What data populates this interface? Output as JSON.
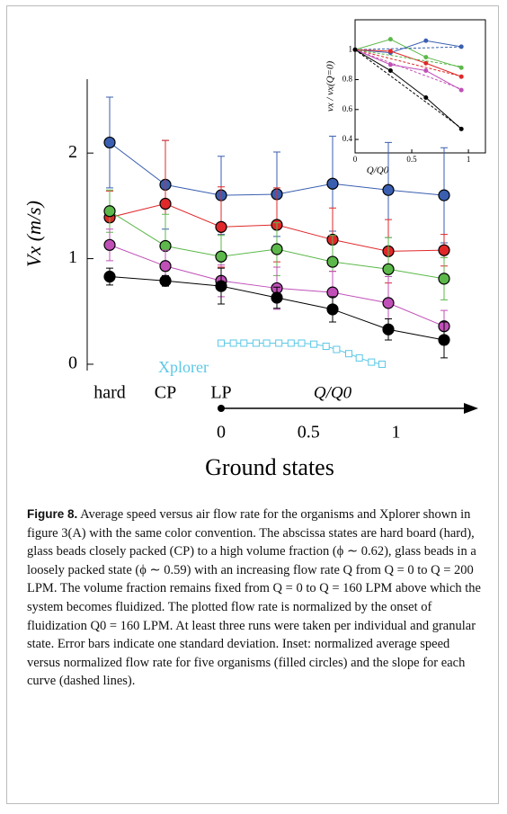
{
  "chart_data": [
    {
      "type": "line",
      "ylabel": "Vx (m/s)",
      "xlabel": "Ground states",
      "q_axis_label": "Q/Q0",
      "categories": [
        "hard",
        "CP",
        "LP",
        null,
        null,
        null,
        null
      ],
      "ylim": [
        -0.06,
        2.7
      ],
      "yticks": [
        0,
        1,
        2
      ],
      "qlim": [
        0,
        1.46
      ],
      "qticks": [
        0,
        0.5,
        1
      ],
      "annotation": "Xplorer",
      "series": [
        {
          "color": "#3a5fb0",
          "values": [
            2.1,
            1.7,
            1.6,
            1.61,
            1.71,
            1.65,
            1.6
          ],
          "errors": [
            0.43,
            0.42,
            0.37,
            0.4,
            0.45,
            0.45,
            0.45
          ]
        },
        {
          "color": "#e0282a",
          "values": [
            1.39,
            1.52,
            1.3,
            1.32,
            1.18,
            1.07,
            1.08
          ],
          "errors": [
            0.25,
            0.6,
            0.38,
            0.35,
            0.3,
            0.3,
            0.15
          ]
        },
        {
          "color": "#5cb84a",
          "values": [
            1.45,
            1.12,
            1.02,
            1.09,
            0.97,
            0.9,
            0.81
          ],
          "errors": [
            0.2,
            0.3,
            0.2,
            0.25,
            0.25,
            0.3,
            0.2
          ]
        },
        {
          "color": "#c050b8",
          "values": [
            1.13,
            0.93,
            0.79,
            0.72,
            0.68,
            0.58,
            0.36
          ],
          "errors": [
            0.15,
            0.15,
            0.15,
            0.2,
            0.2,
            0.25,
            0.15
          ]
        },
        {
          "color": "#000000",
          "values": [
            0.83,
            0.79,
            0.74,
            0.63,
            0.52,
            0.33,
            0.23
          ],
          "errors": [
            0.08,
            0.05,
            0.17,
            0.1,
            0.12,
            0.1,
            0.17
          ]
        }
      ],
      "xplorer": {
        "color": "#5bc8e6",
        "x": [
          0,
          0.07,
          0.13,
          0.2,
          0.26,
          0.33,
          0.4,
          0.46,
          0.53,
          0.6,
          0.66,
          0.73,
          0.79,
          0.86,
          0.92
        ],
        "values": [
          0.2,
          0.2,
          0.2,
          0.2,
          0.2,
          0.2,
          0.2,
          0.2,
          0.19,
          0.17,
          0.14,
          0.1,
          0.06,
          0.02,
          0.0
        ]
      }
    },
    {
      "type": "line",
      "ylabel": "vx / vx(Q=0)",
      "xlabel": "Q/Q0",
      "x": [
        0,
        0.3125,
        0.625,
        0.9375
      ],
      "xlim": [
        0,
        1.15
      ],
      "xticks": [
        0,
        0.5,
        1
      ],
      "ylim": [
        0.31,
        1.2
      ],
      "yticks": [
        0.4,
        0.6,
        0.8,
        1
      ],
      "series": [
        {
          "color": "#3a5fb0",
          "values": [
            1,
            0.98,
            1.06,
            1.02
          ],
          "slope": 0.02
        },
        {
          "color": "#e0282a",
          "values": [
            1,
            0.99,
            0.91,
            0.82
          ],
          "slope": -0.19
        },
        {
          "color": "#5cb84a",
          "values": [
            1,
            1.07,
            0.95,
            0.88
          ],
          "slope": -0.12
        },
        {
          "color": "#c050b8",
          "values": [
            1,
            0.9,
            0.86,
            0.73
          ],
          "slope": -0.28
        },
        {
          "color": "#000000",
          "values": [
            1,
            0.86,
            0.68,
            0.47
          ],
          "slope": -0.56
        }
      ]
    }
  ],
  "figure": {
    "label": "Figure 8.",
    "caption": "Average speed versus air flow rate for the organisms and Xplorer shown in figure 3(A) with the same color convention. The abscissa states are hard board (hard), glass beads closely packed (CP) to a high volume fraction (ϕ ∼ 0.62), glass beads in a loosely packed state (ϕ ∼ 0.59) with an increasing flow rate Q from Q = 0 to Q = 200 LPM. The volume fraction remains fixed from Q = 0 to Q = 160 LPM above which the system becomes fluidized. The plotted flow rate is normalized by the onset of fluidization Q0 = 160 LPM. At least three runs were taken per individual and granular state. Error bars indicate one standard deviation. Inset: normalized average speed versus normalized flow rate for five organisms (filled circles) and the slope for each curve (dashed lines)."
  }
}
